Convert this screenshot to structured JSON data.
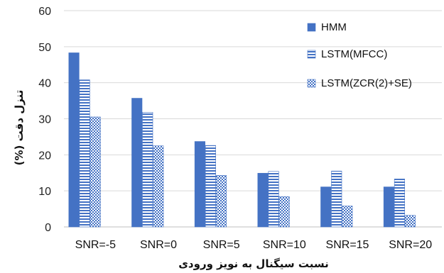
{
  "chart_data": {
    "type": "bar",
    "title": "",
    "xlabel": "نسبت سیگنال به نویز ورودی",
    "ylabel": "تنزل دقت (%)",
    "ylim": [
      0,
      60
    ],
    "yticks": [
      0,
      10,
      20,
      30,
      40,
      50,
      60
    ],
    "grid": true,
    "legend_position": "top-right",
    "categories": [
      "SNR=-5",
      "SNR=0",
      "SNR=5",
      "SNR=10",
      "SNR=15",
      "SNR=20"
    ],
    "series": [
      {
        "name": "HMM",
        "values": [
          48.3,
          35.7,
          23.7,
          14.9,
          11.1,
          11.1
        ],
        "color": "#4472c4",
        "pattern": "solid"
      },
      {
        "name": "LSTM(MFCC)",
        "values": [
          40.8,
          31.8,
          22.6,
          15.4,
          15.5,
          13.3
        ],
        "color": "#4472c4",
        "pattern": "horizontal-stripes"
      },
      {
        "name": "LSTM(ZCR(2)+SE)",
        "values": [
          30.5,
          22.5,
          14.3,
          8.4,
          5.8,
          3.2
        ],
        "color": "#4472c4",
        "pattern": "checker"
      }
    ]
  }
}
